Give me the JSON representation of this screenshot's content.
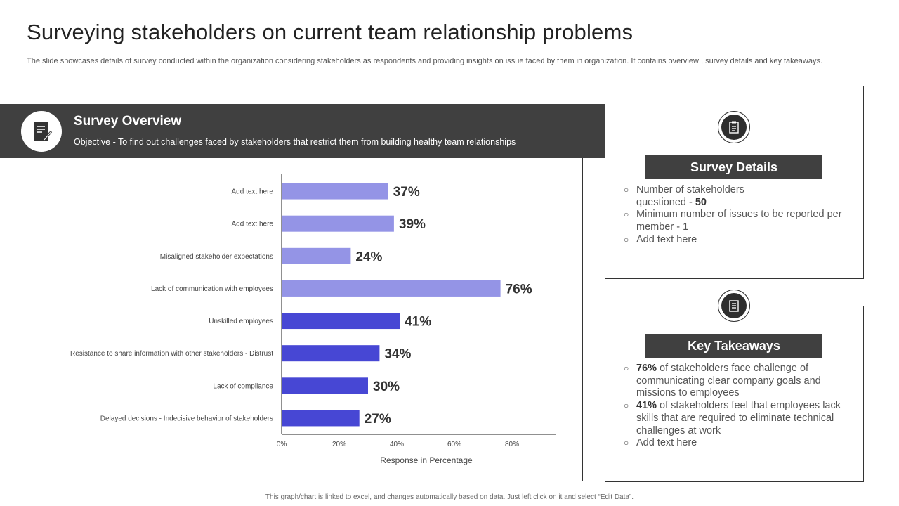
{
  "page": {
    "title": "Surveying stakeholders on current team relationship problems",
    "subtitle": "The slide showcases details of survey conducted within the organization considering stakeholders as respondents and providing insights on issue faced by them in organization. It contains overview , survey details and key takeaways.",
    "footer": "This graph/chart is linked to excel, and changes automatically based on data. Just left click on it and select “Edit Data”."
  },
  "overview": {
    "heading": "Survey Overview",
    "objective": "Objective  - To find out challenges faced by stakeholders that restrict them from  building healthy team relationships",
    "icon": "document-pen-icon"
  },
  "survey_details": {
    "heading": "Survey Details",
    "icon": "checklist-icon",
    "items": [
      {
        "text": "Number of stakeholders questioned - ",
        "bold": "50"
      },
      {
        "text": "Minimum number of issues to be reported per member - 1",
        "bold": ""
      },
      {
        "text": "Add text here",
        "bold": ""
      }
    ]
  },
  "key_takeaways": {
    "heading": "Key Takeaways",
    "icon": "notes-icon",
    "items": [
      {
        "bold": "76%",
        "text": " of stakeholders face challenge of communicating clear company goals and missions to employees"
      },
      {
        "bold": "41%",
        "text": " of stakeholders feel that employees lack skills that are required to eliminate technical challenges at work"
      },
      {
        "bold": "",
        "text": "Add text here"
      }
    ]
  },
  "colors": {
    "light_bar": "#9494e6",
    "dark_bar": "#4747d4",
    "dark_band": "#404040"
  },
  "chart_data": {
    "type": "bar",
    "orientation": "horizontal",
    "categories": [
      "Add text here",
      "Add text here",
      "Misaligned stakeholder expectations",
      "Lack of communication with employees",
      "Unskilled employees",
      "Resistance to share information with other stakeholders - Distrust",
      "Lack of compliance",
      "Delayed decisions - Indecisive behavior of stakeholders"
    ],
    "values": [
      37,
      39,
      24,
      76,
      41,
      34,
      30,
      27
    ],
    "data_labels": [
      "37%",
      "39%",
      "24%",
      "76%",
      "41%",
      "34%",
      "30%",
      "27%"
    ],
    "bar_colors": [
      "#9494e6",
      "#9494e6",
      "#9494e6",
      "#9494e6",
      "#4747d4",
      "#4747d4",
      "#4747d4",
      "#4747d4"
    ],
    "xlabel": "Response in Percentage",
    "xlim": [
      0,
      95
    ],
    "xticks": [
      0,
      20,
      40,
      60,
      80
    ],
    "xtick_labels": [
      "0%",
      "20%",
      "40%",
      "60%",
      "80%"
    ],
    "grid": false,
    "legend": "none"
  }
}
